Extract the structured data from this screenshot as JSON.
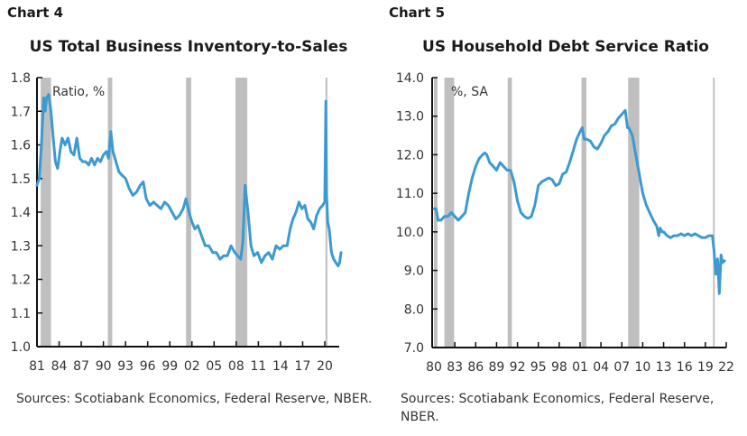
{
  "chart_data": [
    {
      "id": "chart4",
      "type": "line",
      "label": "Chart 4",
      "title": "US Total Business Inventory-to-Sales",
      "unit_label": "Ratio, %",
      "source": "Sources: Scotiabank Economics, Federal Reserve, NBER.",
      "xlabel": "",
      "ylabel": "",
      "ylim": [
        1.0,
        1.8
      ],
      "yticks": [
        "1.0",
        "1.1",
        "1.2",
        "1.3",
        "1.4",
        "1.5",
        "1.6",
        "1.7",
        "1.8"
      ],
      "xlim": [
        1981.0,
        2022.5
      ],
      "xticks": [
        "81",
        "84",
        "87",
        "90",
        "93",
        "96",
        "99",
        "02",
        "05",
        "08",
        "11",
        "14",
        "17",
        "20"
      ],
      "line_color": "#3b9ad1",
      "recession_color": "#bfbfbf",
      "recessions": [
        [
          1981.5,
          1982.9
        ],
        [
          1990.6,
          1991.2
        ],
        [
          2001.2,
          2001.9
        ],
        [
          2007.9,
          2009.5
        ],
        [
          2020.1,
          2020.35
        ]
      ],
      "series": [
        {
          "name": "Inventory-to-Sales Ratio",
          "x": [
            1981.0,
            1981.3,
            1981.6,
            1981.9,
            1982.1,
            1982.3,
            1982.6,
            1982.9,
            1983.2,
            1983.5,
            1983.8,
            1984.1,
            1984.4,
            1984.8,
            1985.2,
            1985.6,
            1986.0,
            1986.4,
            1986.8,
            1987.2,
            1987.6,
            1988.0,
            1988.4,
            1988.8,
            1989.2,
            1989.6,
            1990.0,
            1990.4,
            1990.7,
            1991.0,
            1991.3,
            1991.7,
            1992.1,
            1992.5,
            1993.0,
            1993.5,
            1994.0,
            1994.5,
            1995.0,
            1995.4,
            1995.8,
            1996.3,
            1996.8,
            1997.3,
            1997.8,
            1998.3,
            1998.8,
            1999.3,
            1999.8,
            2000.3,
            2000.8,
            2001.2,
            2001.6,
            2002.0,
            2002.4,
            2002.8,
            2003.3,
            2003.8,
            2004.3,
            2004.8,
            2005.3,
            2005.8,
            2006.3,
            2006.8,
            2007.3,
            2007.8,
            2008.2,
            2008.6,
            2008.9,
            2009.2,
            2009.6,
            2010.0,
            2010.4,
            2010.9,
            2011.4,
            2011.9,
            2012.4,
            2012.9,
            2013.4,
            2013.9,
            2014.4,
            2014.9,
            2015.3,
            2015.7,
            2016.1,
            2016.5,
            2016.9,
            2017.3,
            2017.7,
            2018.1,
            2018.5,
            2018.9,
            2019.3,
            2019.7,
            2020.0,
            2020.15,
            2020.25,
            2020.4,
            2020.6,
            2020.9,
            2021.2,
            2021.5,
            2021.8,
            2022.0,
            2022.2
          ],
          "y": [
            1.48,
            1.5,
            1.6,
            1.74,
            1.7,
            1.74,
            1.75,
            1.7,
            1.62,
            1.55,
            1.53,
            1.58,
            1.62,
            1.6,
            1.62,
            1.58,
            1.57,
            1.62,
            1.56,
            1.55,
            1.55,
            1.54,
            1.56,
            1.54,
            1.56,
            1.55,
            1.57,
            1.58,
            1.56,
            1.64,
            1.58,
            1.55,
            1.52,
            1.51,
            1.5,
            1.47,
            1.45,
            1.46,
            1.48,
            1.49,
            1.44,
            1.42,
            1.43,
            1.42,
            1.41,
            1.43,
            1.42,
            1.4,
            1.38,
            1.39,
            1.41,
            1.44,
            1.4,
            1.37,
            1.35,
            1.36,
            1.33,
            1.3,
            1.3,
            1.28,
            1.28,
            1.26,
            1.27,
            1.27,
            1.3,
            1.28,
            1.27,
            1.26,
            1.31,
            1.48,
            1.4,
            1.3,
            1.27,
            1.28,
            1.25,
            1.27,
            1.28,
            1.26,
            1.3,
            1.29,
            1.3,
            1.3,
            1.35,
            1.38,
            1.4,
            1.43,
            1.41,
            1.42,
            1.38,
            1.37,
            1.35,
            1.39,
            1.41,
            1.42,
            1.43,
            1.73,
            1.45,
            1.37,
            1.35,
            1.28,
            1.26,
            1.25,
            1.24,
            1.25,
            1.28
          ]
        }
      ]
    },
    {
      "id": "chart5",
      "type": "line",
      "label": "Chart 5",
      "title": "US Household Debt Service Ratio",
      "unit_label": "%, SA",
      "source": "Sources: Scotiabank Economics, Federal Reserve, NBER.",
      "xlabel": "",
      "ylabel": "",
      "ylim": [
        7.0,
        14.0
      ],
      "yticks": [
        "7.0",
        "8.0",
        "9.0",
        "10.0",
        "11.0",
        "12.0",
        "13.0",
        "14.0"
      ],
      "xlim": [
        1980.0,
        2022.0
      ],
      "xticks": [
        "80",
        "83",
        "86",
        "89",
        "92",
        "95",
        "98",
        "01",
        "04",
        "07",
        "10",
        "13",
        "16",
        "19",
        "22"
      ],
      "line_color": "#3b9ad1",
      "recession_color": "#bfbfbf",
      "recessions": [
        [
          1980.0,
          1980.5
        ],
        [
          1981.5,
          1982.9
        ],
        [
          1990.6,
          1991.2
        ],
        [
          2001.2,
          2001.9
        ],
        [
          2007.9,
          2009.5
        ],
        [
          2020.1,
          2020.35
        ]
      ],
      "series": [
        {
          "name": "Household Debt Service Ratio",
          "x": [
            1980.0,
            1980.3,
            1980.6,
            1981.0,
            1981.5,
            1982.0,
            1982.5,
            1983.0,
            1983.5,
            1984.0,
            1984.5,
            1985.0,
            1985.5,
            1986.0,
            1986.5,
            1987.0,
            1987.3,
            1987.6,
            1988.0,
            1988.5,
            1989.0,
            1989.5,
            1990.0,
            1990.5,
            1991.0,
            1991.5,
            1992.0,
            1992.5,
            1993.0,
            1993.5,
            1994.0,
            1994.5,
            1995.0,
            1995.5,
            1996.0,
            1996.5,
            1997.0,
            1997.5,
            1998.0,
            1998.5,
            1999.0,
            1999.5,
            2000.0,
            2000.5,
            2001.0,
            2001.3,
            2001.6,
            2002.0,
            2002.5,
            2003.0,
            2003.5,
            2004.0,
            2004.5,
            2005.0,
            2005.5,
            2006.0,
            2006.5,
            2007.0,
            2007.5,
            2007.8,
            2008.0,
            2008.5,
            2009.0,
            2009.5,
            2010.0,
            2010.5,
            2011.0,
            2011.5,
            2012.0,
            2012.3,
            2012.5,
            2012.8,
            2013.0,
            2013.5,
            2014.0,
            2014.5,
            2015.0,
            2015.5,
            2016.0,
            2016.5,
            2017.0,
            2017.5,
            2018.0,
            2018.5,
            2019.0,
            2019.5,
            2020.0,
            2020.25,
            2020.5,
            2020.75,
            2021.0,
            2021.25,
            2021.5,
            2021.75
          ],
          "y": [
            10.6,
            10.6,
            10.3,
            10.3,
            10.4,
            10.4,
            10.5,
            10.4,
            10.3,
            10.4,
            10.5,
            11.0,
            11.4,
            11.7,
            11.9,
            12.0,
            12.05,
            12.0,
            11.8,
            11.7,
            11.6,
            11.8,
            11.7,
            11.6,
            11.6,
            11.3,
            10.8,
            10.5,
            10.4,
            10.35,
            10.4,
            10.7,
            11.2,
            11.3,
            11.35,
            11.4,
            11.35,
            11.2,
            11.25,
            11.5,
            11.55,
            11.8,
            12.1,
            12.4,
            12.6,
            12.7,
            12.4,
            12.4,
            12.35,
            12.2,
            12.15,
            12.3,
            12.5,
            12.6,
            12.75,
            12.8,
            12.95,
            13.05,
            13.15,
            12.7,
            12.7,
            12.5,
            12.0,
            11.5,
            11.0,
            10.7,
            10.5,
            10.3,
            10.15,
            9.9,
            10.1,
            10.0,
            10.0,
            9.9,
            9.85,
            9.9,
            9.9,
            9.95,
            9.9,
            9.95,
            9.9,
            9.95,
            9.9,
            9.85,
            9.85,
            9.9,
            9.9,
            9.5,
            8.9,
            9.3,
            8.4,
            9.4,
            9.2,
            9.25
          ]
        }
      ]
    }
  ]
}
